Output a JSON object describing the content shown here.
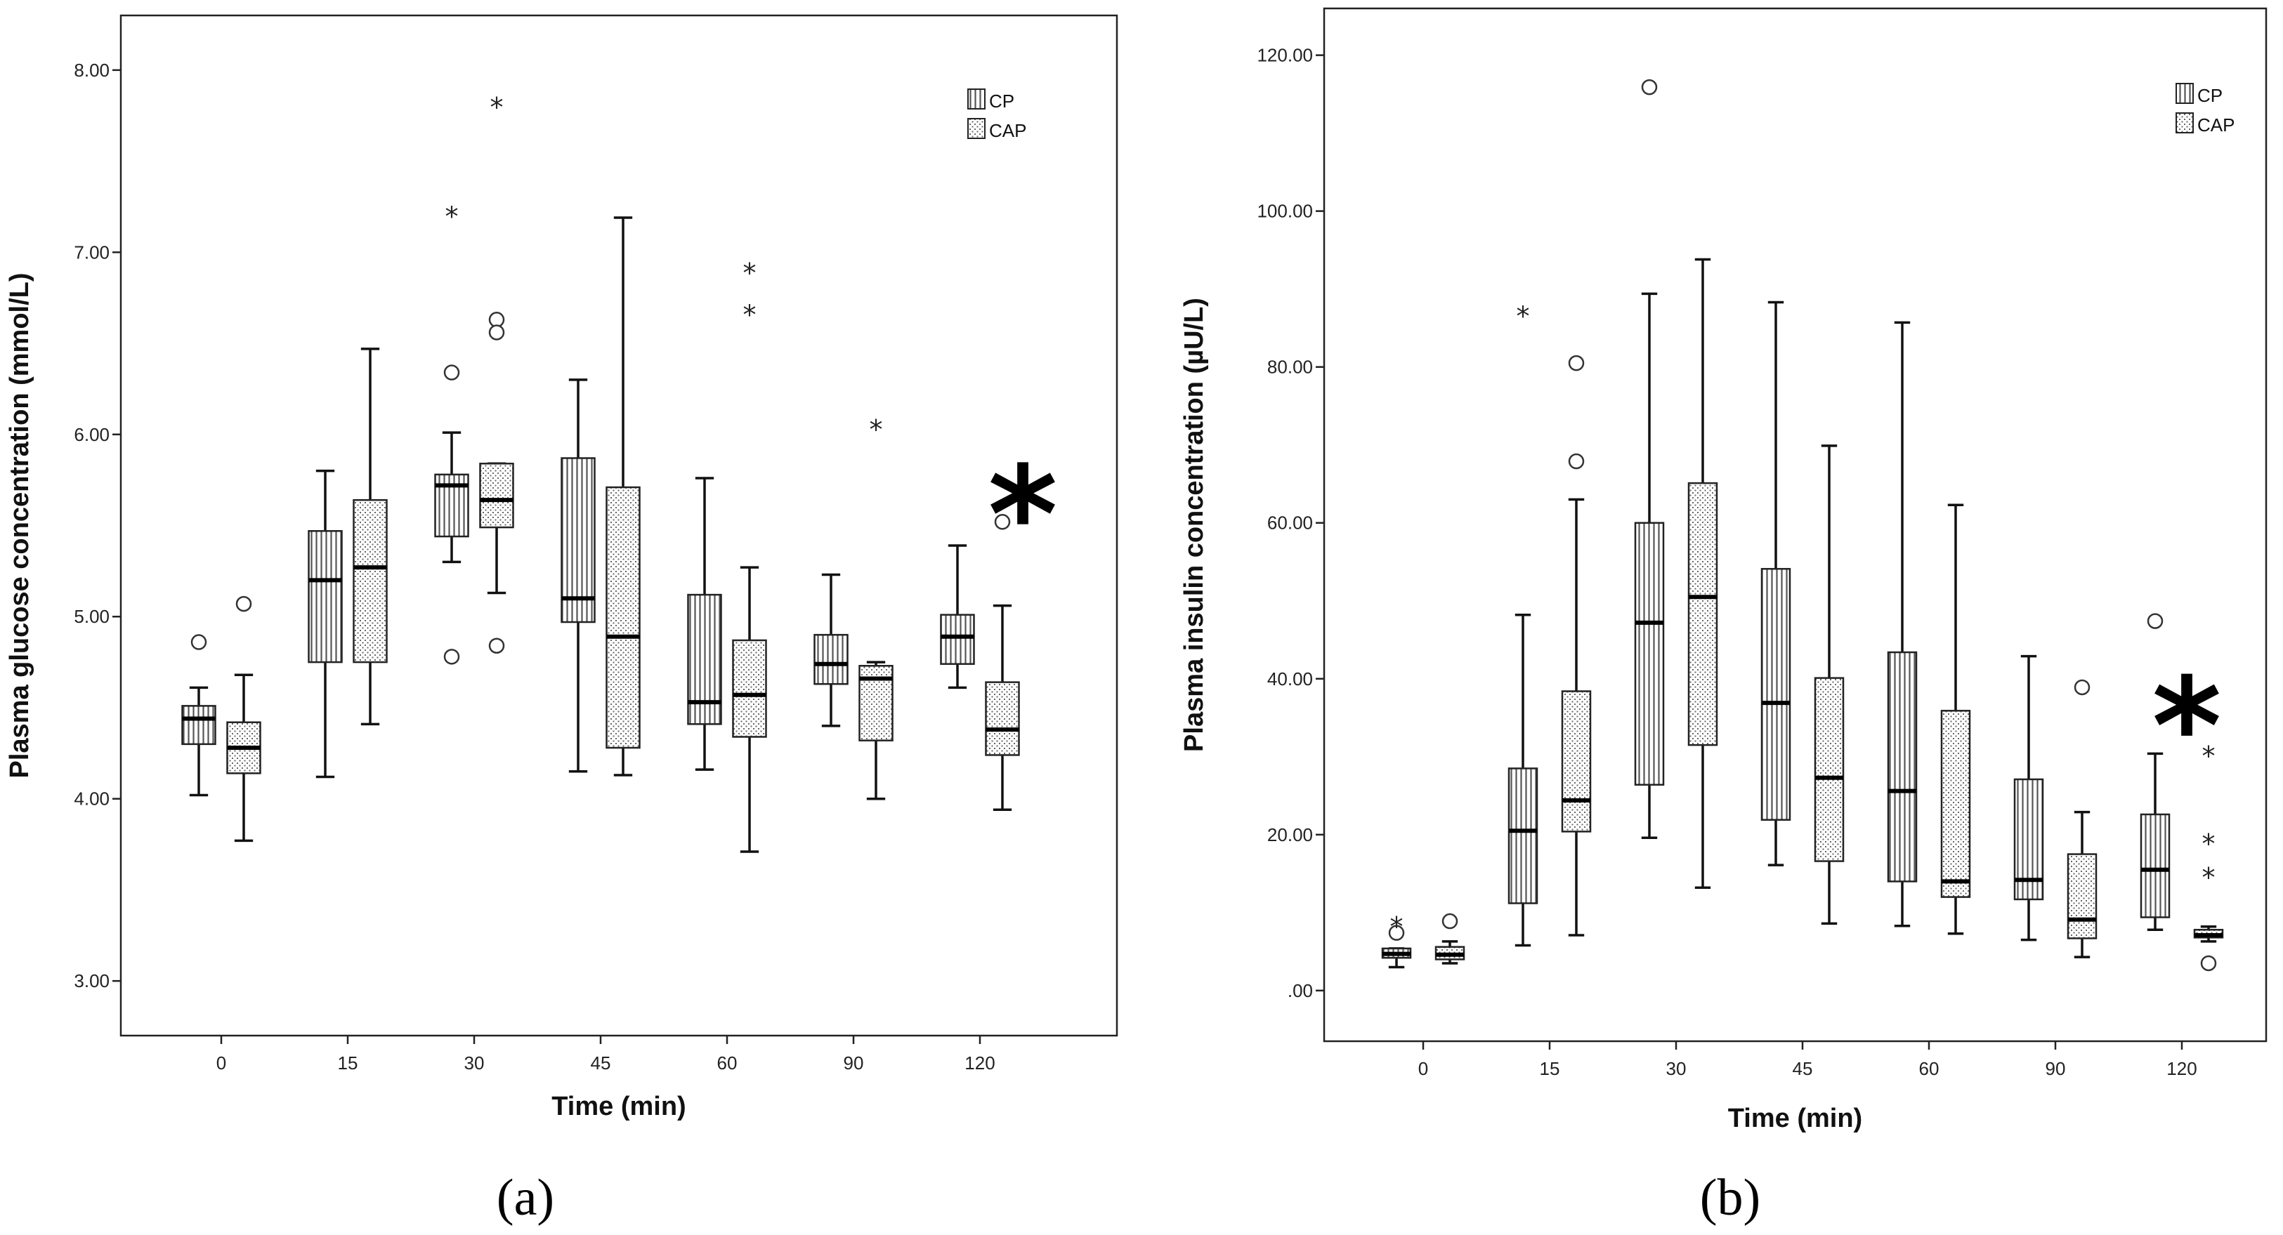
{
  "chart_data": [
    {
      "id": "a",
      "type": "boxplot",
      "caption": "(a)",
      "xlabel": "Time (min)",
      "ylabel": "Plasma glucose concentration (mmol/L)",
      "ylim": [
        2.7,
        8.3
      ],
      "yticks": [
        3,
        4,
        5,
        6,
        7,
        8
      ],
      "ytick_labels": [
        "3.00",
        "4.00",
        "5.00",
        "6.00",
        "7.00",
        "8.00"
      ],
      "categories": [
        "0",
        "15",
        "30",
        "45",
        "60",
        "90",
        "120"
      ],
      "legend": [
        {
          "name": "CP",
          "pattern": "vertical-stripes"
        },
        {
          "name": "CAP",
          "pattern": "dots"
        }
      ],
      "significance_marker": {
        "text": "*",
        "category": "120"
      },
      "series": [
        {
          "name": "CP",
          "boxes": [
            {
              "min": 4.02,
              "q1": 4.3,
              "median": 4.44,
              "q3": 4.51,
              "max": 4.61,
              "outliers": [
                4.86
              ],
              "extremes": []
            },
            {
              "min": 4.12,
              "q1": 4.75,
              "median": 5.2,
              "q3": 5.47,
              "max": 5.8,
              "outliers": [],
              "extremes": []
            },
            {
              "min": 5.3,
              "q1": 5.44,
              "median": 5.72,
              "q3": 5.78,
              "max": 6.01,
              "outliers": [
                6.34,
                4.78
              ],
              "extremes": [
                7.23
              ]
            },
            {
              "min": 4.15,
              "q1": 4.97,
              "median": 5.1,
              "q3": 5.87,
              "max": 6.3,
              "outliers": [],
              "extremes": []
            },
            {
              "min": 4.16,
              "q1": 4.41,
              "median": 4.53,
              "q3": 5.12,
              "max": 5.76,
              "outliers": [],
              "extremes": []
            },
            {
              "min": 4.4,
              "q1": 4.63,
              "median": 4.74,
              "q3": 4.9,
              "max": 5.23,
              "outliers": [],
              "extremes": []
            },
            {
              "min": 4.61,
              "q1": 4.74,
              "median": 4.89,
              "q3": 5.01,
              "max": 5.39,
              "outliers": [],
              "extremes": []
            }
          ]
        },
        {
          "name": "CAP",
          "boxes": [
            {
              "min": 3.77,
              "q1": 4.14,
              "median": 4.28,
              "q3": 4.42,
              "max": 4.68,
              "outliers": [
                5.07
              ],
              "extremes": []
            },
            {
              "min": 4.41,
              "q1": 4.75,
              "median": 5.27,
              "q3": 5.64,
              "max": 6.47,
              "outliers": [],
              "extremes": []
            },
            {
              "min": 5.13,
              "q1": 5.49,
              "median": 5.64,
              "q3": 5.84,
              "max": 5.84,
              "outliers": [
                6.63,
                6.56,
                4.84
              ],
              "extremes": [
                7.83
              ]
            },
            {
              "min": 4.13,
              "q1": 4.28,
              "median": 4.89,
              "q3": 5.71,
              "max": 7.19,
              "outliers": [],
              "extremes": []
            },
            {
              "min": 3.71,
              "q1": 4.34,
              "median": 4.57,
              "q3": 4.87,
              "max": 5.27,
              "outliers": [],
              "extremes": [
                6.92,
                6.69
              ]
            },
            {
              "min": 4.0,
              "q1": 4.32,
              "median": 4.66,
              "q3": 4.73,
              "max": 4.75,
              "outliers": [],
              "extremes": [
                6.06
              ]
            },
            {
              "min": 3.94,
              "q1": 4.24,
              "median": 4.38,
              "q3": 4.64,
              "max": 5.06,
              "outliers": [
                5.52
              ],
              "extremes": []
            }
          ]
        }
      ]
    },
    {
      "id": "b",
      "type": "boxplot",
      "caption": "(b)",
      "xlabel": "Time (min)",
      "ylabel": "Plasma insulin concentration (µU/L)",
      "ylim": [
        -6.5,
        126.0
      ],
      "yticks": [
        0,
        20,
        40,
        60,
        80,
        100,
        120
      ],
      "ytick_labels": [
        ".00",
        "20.00",
        "40.00",
        "60.00",
        "80.00",
        "100.00",
        "120.00"
      ],
      "categories": [
        "0",
        "15",
        "30",
        "45",
        "60",
        "90",
        "120"
      ],
      "legend": [
        {
          "name": "CP",
          "pattern": "vertical-stripes"
        },
        {
          "name": "CAP",
          "pattern": "dots"
        }
      ],
      "significance_marker": {
        "text": "*",
        "category": "120"
      },
      "series": [
        {
          "name": "CP",
          "boxes": [
            {
              "min": 3.0,
              "q1": 4.2,
              "median": 4.7,
              "q3": 5.4,
              "max": 5.4,
              "outliers": [
                7.4
              ],
              "extremes": [
                9.0
              ]
            },
            {
              "min": 5.8,
              "q1": 11.2,
              "median": 20.5,
              "q3": 28.5,
              "max": 48.2,
              "outliers": [],
              "extremes": [
                87.3
              ]
            },
            {
              "min": 19.6,
              "q1": 26.4,
              "median": 47.2,
              "q3": 60.0,
              "max": 89.4,
              "outliers": [
                115.9
              ],
              "extremes": []
            },
            {
              "min": 16.1,
              "q1": 21.9,
              "median": 36.9,
              "q3": 54.1,
              "max": 88.3,
              "outliers": [],
              "extremes": []
            },
            {
              "min": 8.3,
              "q1": 14.0,
              "median": 25.6,
              "q3": 43.4,
              "max": 85.7,
              "outliers": [],
              "extremes": []
            },
            {
              "min": 6.5,
              "q1": 11.7,
              "median": 14.2,
              "q3": 27.1,
              "max": 42.9,
              "outliers": [],
              "extremes": []
            },
            {
              "min": 7.8,
              "q1": 9.4,
              "median": 15.5,
              "q3": 22.6,
              "max": 30.4,
              "outliers": [
                47.4
              ],
              "extremes": []
            }
          ]
        },
        {
          "name": "CAP",
          "boxes": [
            {
              "min": 3.5,
              "q1": 4.0,
              "median": 4.6,
              "q3": 5.6,
              "max": 6.3,
              "outliers": [
                8.9
              ],
              "extremes": []
            },
            {
              "min": 7.1,
              "q1": 20.4,
              "median": 24.4,
              "q3": 38.4,
              "max": 63.0,
              "outliers": [
                80.5,
                67.9
              ],
              "extremes": []
            },
            {
              "min": 13.2,
              "q1": 31.5,
              "median": 50.5,
              "q3": 65.1,
              "max": 93.8,
              "outliers": [],
              "extremes": []
            },
            {
              "min": 8.6,
              "q1": 16.6,
              "median": 27.3,
              "q3": 40.1,
              "max": 69.9,
              "outliers": [],
              "extremes": []
            },
            {
              "min": 7.3,
              "q1": 12.0,
              "median": 14.0,
              "q3": 35.9,
              "max": 62.3,
              "outliers": [],
              "extremes": []
            },
            {
              "min": 4.3,
              "q1": 6.7,
              "median": 9.1,
              "q3": 17.5,
              "max": 22.9,
              "outliers": [
                38.9
              ],
              "extremes": []
            },
            {
              "min": 6.3,
              "q1": 6.8,
              "median": 7.1,
              "q3": 7.8,
              "max": 8.2,
              "outliers": [
                3.5
              ],
              "extremes": [
                30.9,
                19.6,
                15.3
              ]
            }
          ]
        }
      ]
    }
  ]
}
